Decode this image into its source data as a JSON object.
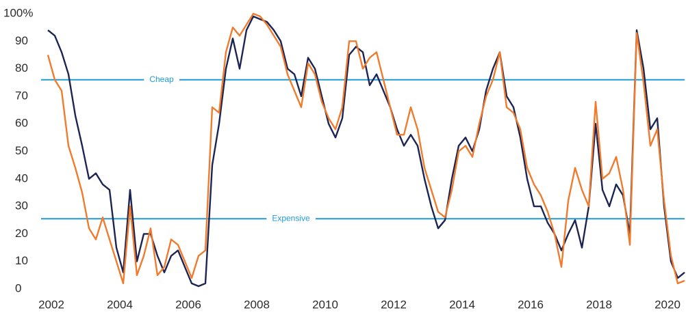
{
  "chart_data": {
    "type": "line",
    "x": [
      2001.9,
      2002.1,
      2002.3,
      2002.5,
      2002.7,
      2002.9,
      2003.1,
      2003.3,
      2003.5,
      2003.7,
      2003.9,
      2004.1,
      2004.3,
      2004.5,
      2004.7,
      2004.9,
      2005.1,
      2005.3,
      2005.5,
      2005.7,
      2005.9,
      2006.1,
      2006.3,
      2006.5,
      2006.7,
      2006.9,
      2007.1,
      2007.3,
      2007.5,
      2007.7,
      2007.9,
      2008.1,
      2008.3,
      2008.5,
      2008.7,
      2008.9,
      2009.1,
      2009.3,
      2009.5,
      2009.7,
      2009.9,
      2010.1,
      2010.3,
      2010.5,
      2010.7,
      2010.9,
      2011.1,
      2011.3,
      2011.5,
      2011.7,
      2011.9,
      2012.1,
      2012.3,
      2012.5,
      2012.7,
      2012.9,
      2013.1,
      2013.3,
      2013.5,
      2013.7,
      2013.9,
      2014.1,
      2014.3,
      2014.5,
      2014.7,
      2014.9,
      2015.1,
      2015.3,
      2015.5,
      2015.7,
      2015.9,
      2016.1,
      2016.3,
      2016.5,
      2016.7,
      2016.9,
      2017.1,
      2017.3,
      2017.5,
      2017.7,
      2017.9,
      2018.1,
      2018.3,
      2018.5,
      2018.7,
      2018.9,
      2019.1,
      2019.3,
      2019.5,
      2019.7,
      2019.9,
      2020.1,
      2020.3,
      2020.5
    ],
    "series": [
      {
        "color": "#1b2452",
        "values": [
          94,
          92,
          86,
          78,
          63,
          52,
          40,
          42,
          38,
          36,
          15,
          6,
          36,
          10,
          20,
          20,
          12,
          6,
          12,
          14,
          8,
          2,
          1,
          2,
          45,
          60,
          80,
          91,
          80,
          94,
          99,
          98,
          97,
          94,
          90,
          80,
          78,
          70,
          84,
          80,
          70,
          60,
          55,
          62,
          85,
          88,
          86,
          74,
          78,
          72,
          66,
          58,
          52,
          56,
          52,
          40,
          30,
          22,
          25,
          40,
          52,
          55,
          50,
          58,
          72,
          80,
          86,
          70,
          66,
          55,
          40,
          30,
          30,
          24,
          20,
          14,
          20,
          25,
          15,
          30,
          60,
          36,
          30,
          38,
          34,
          20,
          94,
          80,
          58,
          62,
          30,
          10,
          4,
          6
        ]
      },
      {
        "color": "#f07b2c",
        "values": [
          85,
          76,
          72,
          52,
          44,
          35,
          22,
          18,
          26,
          18,
          10,
          2,
          30,
          5,
          12,
          22,
          5,
          8,
          18,
          16,
          10,
          4,
          12,
          14,
          66,
          64,
          86,
          95,
          92,
          96,
          100,
          99,
          96,
          92,
          88,
          78,
          72,
          66,
          82,
          78,
          68,
          62,
          58,
          66,
          90,
          90,
          80,
          84,
          86,
          76,
          66,
          56,
          56,
          66,
          58,
          44,
          36,
          28,
          26,
          36,
          50,
          52,
          48,
          60,
          70,
          76,
          86,
          66,
          64,
          58,
          44,
          38,
          34,
          28,
          20,
          8,
          32,
          44,
          36,
          30,
          68,
          40,
          42,
          48,
          36,
          16,
          93,
          75,
          52,
          58,
          32,
          12,
          2,
          3
        ]
      }
    ],
    "reference_lines": [
      {
        "value": 76,
        "label": "Cheap",
        "color": "#1e9ad6"
      },
      {
        "value": 25.5,
        "label": "Expensive",
        "color": "#1e9ad6"
      }
    ],
    "xlim": [
      2001.7,
      2020.5
    ],
    "xticks": [
      2002,
      2004,
      2006,
      2008,
      2010,
      2012,
      2014,
      2016,
      2018,
      2020
    ],
    "ylim": [
      0,
      100
    ],
    "yticks": [
      0,
      10,
      20,
      30,
      40,
      50,
      60,
      70,
      80,
      90,
      {
        "value": 100,
        "label": "100%"
      }
    ]
  }
}
